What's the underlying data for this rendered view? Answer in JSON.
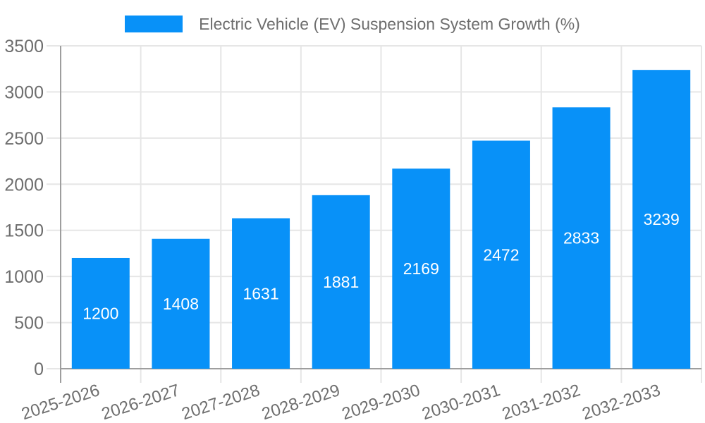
{
  "chart_data": {
    "type": "bar",
    "title": "Electric Vehicle (EV) Suspension System Growth (%)",
    "legend": {
      "position": "top",
      "label": "Electric Vehicle (EV) Suspension System Growth (%)"
    },
    "categories": [
      "2025-2026",
      "2026-2027",
      "2027-2028",
      "2028-2029",
      "2029-2030",
      "2030-2031",
      "2031-2032",
      "2032-2033"
    ],
    "series": [
      {
        "name": "Electric Vehicle (EV) Suspension System Growth (%)",
        "values": [
          1200,
          1408,
          1631,
          1881,
          2169,
          2472,
          2833,
          3239
        ]
      }
    ],
    "show_value_labels": true,
    "xlabel": "",
    "ylabel": "",
    "ylim": [
      0,
      3500
    ],
    "ytick_step": 500,
    "yticks": [
      0,
      500,
      1000,
      1500,
      2000,
      2500,
      3000,
      3500
    ],
    "x_label_rotation_deg": -18,
    "grid": true,
    "colors": {
      "bar": "#0891f8",
      "grid": "#e6e6e6",
      "axis": "#9e9e9e",
      "tick_label": "#6e6e6e",
      "legend_text": "#6e6e6e",
      "value_label": "#ffffff",
      "background": "#ffffff"
    }
  }
}
